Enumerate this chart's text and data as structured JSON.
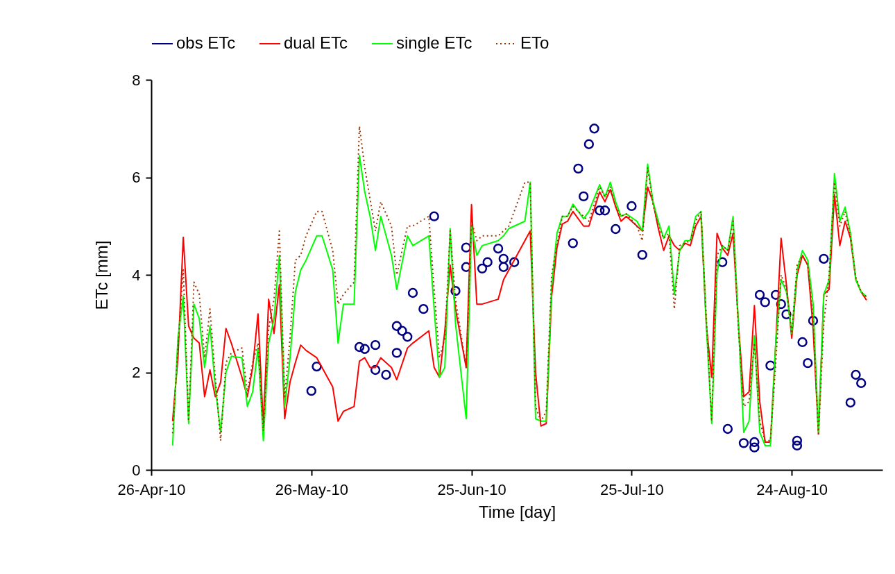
{
  "chart_data": {
    "type": "line",
    "xlabel": "Time [day]",
    "ylabel": "ETc [mm]",
    "xlim": [
      "2010-04-26",
      "2010-09-10"
    ],
    "xticks": [
      {
        "value": "2010-04-26",
        "label": "26-Apr-10"
      },
      {
        "value": "2010-05-26",
        "label": "26-May-10"
      },
      {
        "value": "2010-06-25",
        "label": "25-Jun-10"
      },
      {
        "value": "2010-07-25",
        "label": "25-Jul-10"
      },
      {
        "value": "2010-08-24",
        "label": "24-Aug-10"
      }
    ],
    "ylim": [
      0,
      8
    ],
    "yticks": [
      0,
      2,
      4,
      6,
      8
    ],
    "grid": false,
    "legend": "top",
    "x": [
      "2010-04-30",
      "2010-05-01",
      "2010-05-02",
      "2010-05-03",
      "2010-05-04",
      "2010-05-05",
      "2010-05-06",
      "2010-05-07",
      "2010-05-08",
      "2010-05-09",
      "2010-05-10",
      "2010-05-11",
      "2010-05-13",
      "2010-05-14",
      "2010-05-15",
      "2010-05-16",
      "2010-05-17",
      "2010-05-18",
      "2010-05-19",
      "2010-05-20",
      "2010-05-21",
      "2010-05-22",
      "2010-05-23",
      "2010-05-24",
      "2010-05-25",
      "2010-05-27",
      "2010-05-28",
      "2010-05-30",
      "2010-05-31",
      "2010-06-01",
      "2010-06-03",
      "2010-06-04",
      "2010-06-05",
      "2010-06-06",
      "2010-06-07",
      "2010-06-08",
      "2010-06-10",
      "2010-06-11",
      "2010-06-13",
      "2010-06-14",
      "2010-06-17",
      "2010-06-18",
      "2010-06-19",
      "2010-06-20",
      "2010-06-21",
      "2010-06-22",
      "2010-06-24",
      "2010-06-25",
      "2010-06-26",
      "2010-06-27",
      "2010-06-30",
      "2010-07-01",
      "2010-07-02",
      "2010-07-05",
      "2010-07-06",
      "2010-07-07",
      "2010-07-08",
      "2010-07-09",
      "2010-07-10",
      "2010-07-11",
      "2010-07-12",
      "2010-07-13",
      "2010-07-14",
      "2010-07-16",
      "2010-07-17",
      "2010-07-19",
      "2010-07-20",
      "2010-07-21",
      "2010-07-22",
      "2010-07-23",
      "2010-07-24",
      "2010-07-26",
      "2010-07-27",
      "2010-07-28",
      "2010-07-29",
      "2010-07-30",
      "2010-07-31",
      "2010-08-01",
      "2010-08-02",
      "2010-08-03",
      "2010-08-04",
      "2010-08-05",
      "2010-08-06",
      "2010-08-07",
      "2010-08-08",
      "2010-08-09",
      "2010-08-10",
      "2010-08-11",
      "2010-08-12",
      "2010-08-13",
      "2010-08-14",
      "2010-08-15",
      "2010-08-16",
      "2010-08-17",
      "2010-08-18",
      "2010-08-19",
      "2010-08-20",
      "2010-08-21",
      "2010-08-22",
      "2010-08-23",
      "2010-08-24",
      "2010-08-25",
      "2010-08-26",
      "2010-08-27",
      "2010-08-28",
      "2010-08-29",
      "2010-08-30",
      "2010-08-31",
      "2010-09-01",
      "2010-09-02",
      "2010-09-03",
      "2010-09-04",
      "2010-09-05",
      "2010-09-06",
      "2010-09-07"
    ],
    "series": [
      {
        "name": "obs ETc",
        "type": "scatter",
        "marker": "circle",
        "color": "#000080",
        "x": [
          "2010-05-26",
          "2010-05-27",
          "2010-06-04",
          "2010-06-05",
          "2010-06-07",
          "2010-06-07",
          "2010-06-09",
          "2010-06-11",
          "2010-06-11",
          "2010-06-12",
          "2010-06-13",
          "2010-06-14",
          "2010-06-16",
          "2010-06-18",
          "2010-06-22",
          "2010-06-24",
          "2010-06-24",
          "2010-06-27",
          "2010-06-28",
          "2010-06-30",
          "2010-07-01",
          "2010-07-01",
          "2010-07-03",
          "2010-07-14",
          "2010-07-15",
          "2010-07-16",
          "2010-07-17",
          "2010-07-18",
          "2010-07-19",
          "2010-07-20",
          "2010-07-22",
          "2010-07-25",
          "2010-07-27",
          "2010-08-11",
          "2010-08-12",
          "2010-08-15",
          "2010-08-17",
          "2010-08-17",
          "2010-08-18",
          "2010-08-19",
          "2010-08-20",
          "2010-08-21",
          "2010-08-22",
          "2010-08-23",
          "2010-08-25",
          "2010-08-25",
          "2010-08-26",
          "2010-08-27",
          "2010-08-28",
          "2010-08-30",
          "2010-09-04",
          "2010-09-05",
          "2010-09-06"
        ],
        "values": [
          1.62,
          2.12,
          2.52,
          2.48,
          2.56,
          2.05,
          1.95,
          2.4,
          2.95,
          2.85,
          2.73,
          3.63,
          3.3,
          5.2,
          3.67,
          4.56,
          4.16,
          4.13,
          4.26,
          4.54,
          4.33,
          4.16,
          4.26,
          4.65,
          6.18,
          5.61,
          6.68,
          7.0,
          5.32,
          5.32,
          4.94,
          5.41,
          4.41,
          4.26,
          0.84,
          0.55,
          0.57,
          0.46,
          3.59,
          3.44,
          2.14,
          3.59,
          3.4,
          3.19,
          0.6,
          0.5,
          2.62,
          2.19,
          3.06,
          4.33,
          1.38,
          1.95,
          1.78
        ]
      },
      {
        "name": "dual ETc",
        "line_style": "solid",
        "color": "#ff0000",
        "values": [
          1.0,
          2.3,
          4.77,
          2.95,
          2.7,
          2.6,
          1.5,
          2.05,
          1.5,
          1.8,
          2.9,
          2.6,
          1.9,
          1.5,
          2.1,
          3.2,
          0.9,
          3.5,
          2.8,
          3.8,
          1.05,
          1.8,
          2.2,
          2.56,
          2.45,
          2.3,
          2.1,
          1.7,
          1.0,
          1.2,
          1.3,
          2.23,
          2.3,
          2.1,
          2.1,
          2.3,
          2.1,
          1.85,
          2.5,
          2.6,
          2.85,
          2.1,
          1.9,
          2.85,
          4.2,
          3.3,
          2.1,
          5.44,
          3.4,
          3.4,
          3.5,
          3.9,
          4.1,
          4.7,
          4.9,
          2.0,
          0.9,
          0.95,
          3.55,
          4.55,
          5.04,
          5.1,
          5.3,
          5.0,
          5.0,
          5.7,
          5.5,
          5.75,
          5.4,
          5.1,
          5.2,
          5.0,
          4.9,
          5.8,
          5.5,
          4.95,
          4.5,
          4.8,
          4.6,
          4.5,
          4.65,
          4.6,
          5.0,
          5.2,
          2.95,
          1.9,
          4.85,
          4.55,
          4.4,
          4.85,
          3.0,
          1.5,
          1.6,
          3.37,
          1.4,
          0.57,
          0.57,
          2.6,
          4.75,
          3.8,
          2.7,
          4.0,
          4.4,
          4.2,
          2.9,
          0.75,
          3.6,
          3.7,
          5.65,
          4.6,
          5.1,
          4.75,
          3.9,
          3.65,
          3.48
        ]
      },
      {
        "name": "single ETc",
        "line_style": "solid",
        "color": "#00ff00",
        "values": [
          0.5,
          2.7,
          3.56,
          0.95,
          3.4,
          3.1,
          2.1,
          2.95,
          1.7,
          0.77,
          2.0,
          2.33,
          2.3,
          1.3,
          1.6,
          2.5,
          0.6,
          2.6,
          3.1,
          4.4,
          1.3,
          2.3,
          3.65,
          4.1,
          4.3,
          4.8,
          4.8,
          4.1,
          2.6,
          3.4,
          3.4,
          6.45,
          5.7,
          5.2,
          4.5,
          5.2,
          4.4,
          3.7,
          4.8,
          4.6,
          4.8,
          3.3,
          1.9,
          2.1,
          4.95,
          3.0,
          1.05,
          5.0,
          4.4,
          4.6,
          4.7,
          4.8,
          4.95,
          5.1,
          5.9,
          1.05,
          1.0,
          1.0,
          3.75,
          4.85,
          5.2,
          5.2,
          5.45,
          5.15,
          5.3,
          5.85,
          5.6,
          5.9,
          5.5,
          5.2,
          5.25,
          5.1,
          4.9,
          6.27,
          5.5,
          5.1,
          4.75,
          5.0,
          3.6,
          4.5,
          4.7,
          4.7,
          5.2,
          5.3,
          2.95,
          0.95,
          4.05,
          4.6,
          4.5,
          5.2,
          3.0,
          0.77,
          1.0,
          2.75,
          0.77,
          0.5,
          0.5,
          2.6,
          3.9,
          3.65,
          2.8,
          4.1,
          4.5,
          4.3,
          3.4,
          0.77,
          3.6,
          3.9,
          6.08,
          5.1,
          5.39,
          4.85,
          3.9,
          3.65,
          3.55
        ]
      },
      {
        "name": "ETo",
        "line_style": "dotted",
        "color": "#993300",
        "values": [
          0.75,
          2.5,
          4.1,
          1.0,
          3.85,
          3.6,
          2.3,
          3.3,
          1.9,
          0.6,
          2.2,
          2.4,
          2.5,
          1.6,
          2.2,
          2.6,
          0.8,
          2.9,
          3.5,
          4.9,
          1.5,
          2.7,
          4.3,
          4.4,
          4.8,
          5.3,
          5.3,
          4.5,
          3.4,
          3.6,
          3.85,
          7.05,
          6.2,
          5.55,
          4.9,
          5.5,
          5.0,
          4.0,
          5.0,
          5.0,
          5.2,
          3.7,
          2.3,
          2.7,
          4.9,
          3.5,
          2.1,
          5.1,
          4.7,
          4.8,
          4.8,
          4.9,
          5.0,
          5.9,
          5.9,
          1.3,
          1.0,
          1.2,
          4.0,
          4.6,
          5.2,
          5.2,
          5.4,
          5.2,
          5.1,
          5.8,
          5.6,
          5.8,
          5.4,
          5.2,
          5.25,
          5.0,
          4.7,
          6.2,
          5.45,
          5.0,
          4.75,
          4.85,
          3.3,
          4.6,
          4.65,
          4.7,
          5.1,
          5.3,
          3.1,
          1.0,
          4.4,
          4.6,
          4.5,
          5.1,
          2.9,
          1.3,
          1.4,
          2.6,
          1.0,
          0.6,
          0.6,
          2.2,
          4.0,
          3.7,
          2.8,
          4.2,
          4.4,
          4.2,
          3.1,
          0.7,
          3.0,
          4.0,
          5.9,
          5.0,
          5.3,
          4.8,
          3.95,
          3.65,
          3.55
        ]
      }
    ]
  }
}
